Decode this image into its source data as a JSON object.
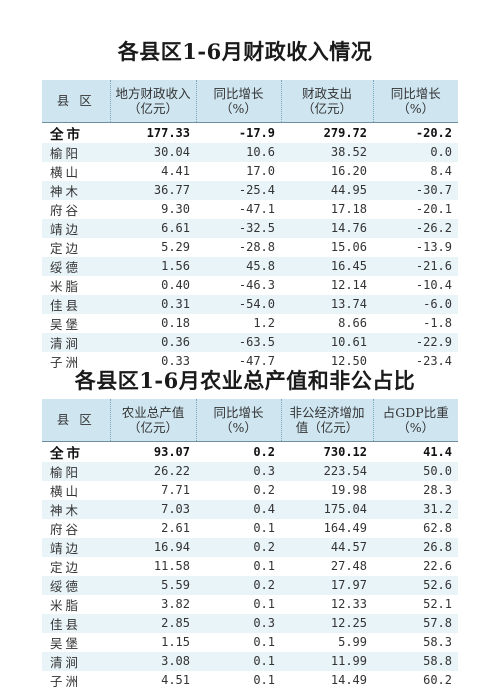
{
  "table1": {
    "title": "各县区1-6月财政收入情况",
    "headers": [
      "县 区",
      "地方财政收入（亿元）",
      "同比增长（%）",
      "财政支出（亿元）",
      "同比增长（%）"
    ],
    "header_lines": [
      [
        "县 区",
        ""
      ],
      [
        "地方财政收入",
        "（亿元）"
      ],
      [
        "同比增长",
        "（%）"
      ],
      [
        "财政支出",
        "（亿元）"
      ],
      [
        "同比增长",
        "（%）"
      ]
    ],
    "rows": [
      {
        "name": "全市",
        "v1": "177.33",
        "v2": "-17.9",
        "v3": "279.72",
        "v4": "-20.2"
      },
      {
        "name": "榆阳",
        "v1": "30.04",
        "v2": "10.6",
        "v3": "38.52",
        "v4": "0.0"
      },
      {
        "name": "横山",
        "v1": "4.41",
        "v2": "17.0",
        "v3": "16.20",
        "v4": "8.4"
      },
      {
        "name": "神木",
        "v1": "36.77",
        "v2": "-25.4",
        "v3": "44.95",
        "v4": "-30.7"
      },
      {
        "name": "府谷",
        "v1": "9.30",
        "v2": "-47.1",
        "v3": "17.18",
        "v4": "-20.1"
      },
      {
        "name": "靖边",
        "v1": "6.61",
        "v2": "-32.5",
        "v3": "14.76",
        "v4": "-26.2"
      },
      {
        "name": "定边",
        "v1": "5.29",
        "v2": "-28.8",
        "v3": "15.06",
        "v4": "-13.9"
      },
      {
        "name": "绥德",
        "v1": "1.56",
        "v2": "45.8",
        "v3": "16.45",
        "v4": "-21.6"
      },
      {
        "name": "米脂",
        "v1": "0.40",
        "v2": "-46.3",
        "v3": "12.14",
        "v4": "-10.4"
      },
      {
        "name": "佳县",
        "v1": "0.31",
        "v2": "-54.0",
        "v3": "13.74",
        "v4": "-6.0"
      },
      {
        "name": "吴堡",
        "v1": "0.18",
        "v2": "1.2",
        "v3": "8.66",
        "v4": "-1.8"
      },
      {
        "name": "清涧",
        "v1": "0.36",
        "v2": "-63.5",
        "v3": "10.61",
        "v4": "-22.9"
      },
      {
        "name": "子洲",
        "v1": "0.33",
        "v2": "-47.7",
        "v3": "12.50",
        "v4": "-23.4"
      }
    ]
  },
  "table2": {
    "title": "各县区1-6月农业总产值和非公占比",
    "headers": [
      "县 区",
      "农业总产值（亿元）",
      "同比增长（%）",
      "非公经济增加值（亿元）",
      "占GDP比重（%）"
    ],
    "header_lines": [
      [
        "县 区",
        ""
      ],
      [
        "农业总产值",
        "（亿元）"
      ],
      [
        "同比增长",
        "（%）"
      ],
      [
        "非公经济增加",
        "值（亿元）"
      ],
      [
        "占GDP比重",
        "（%）"
      ]
    ],
    "rows": [
      {
        "name": "全市",
        "v1": "93.07",
        "v2": "0.2",
        "v3": "730.12",
        "v4": "41.4"
      },
      {
        "name": "榆阳",
        "v1": "26.22",
        "v2": "0.3",
        "v3": "223.54",
        "v4": "50.0"
      },
      {
        "name": "横山",
        "v1": "7.71",
        "v2": "0.2",
        "v3": "19.98",
        "v4": "28.3"
      },
      {
        "name": "神木",
        "v1": "7.03",
        "v2": "0.4",
        "v3": "175.04",
        "v4": "31.2"
      },
      {
        "name": "府谷",
        "v1": "2.61",
        "v2": "0.1",
        "v3": "164.49",
        "v4": "62.8"
      },
      {
        "name": "靖边",
        "v1": "16.94",
        "v2": "0.2",
        "v3": "44.57",
        "v4": "26.8"
      },
      {
        "name": "定边",
        "v1": "11.58",
        "v2": "0.1",
        "v3": "27.48",
        "v4": "22.6"
      },
      {
        "name": "绥德",
        "v1": "5.59",
        "v2": "0.2",
        "v3": "17.97",
        "v4": "52.6"
      },
      {
        "name": "米脂",
        "v1": "3.82",
        "v2": "0.1",
        "v3": "12.33",
        "v4": "52.1"
      },
      {
        "name": "佳县",
        "v1": "2.85",
        "v2": "0.3",
        "v3": "12.25",
        "v4": "57.8"
      },
      {
        "name": "吴堡",
        "v1": "1.15",
        "v2": "0.1",
        "v3": "5.99",
        "v4": "58.3"
      },
      {
        "name": "清涧",
        "v1": "3.08",
        "v2": "0.1",
        "v3": "11.99",
        "v4": "58.8"
      },
      {
        "name": "子洲",
        "v1": "4.51",
        "v2": "0.1",
        "v3": "14.49",
        "v4": "60.2"
      }
    ]
  }
}
